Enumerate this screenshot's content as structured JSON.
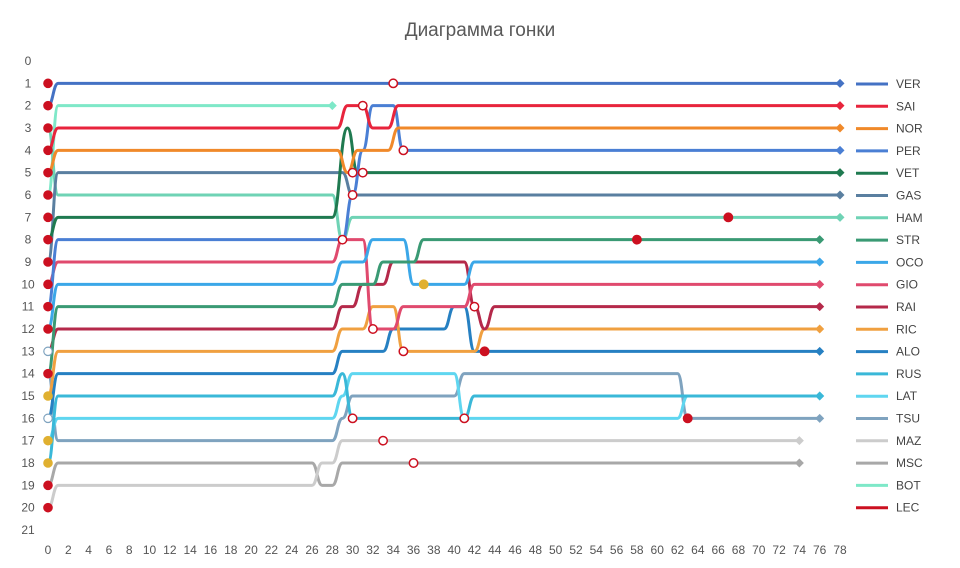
{
  "chart_data": {
    "type": "line",
    "title": "Диаграмма гонки",
    "xlabel": "",
    "ylabel": "",
    "xlim": [
      0,
      78
    ],
    "ylim": [
      0,
      21
    ],
    "x_ticks": [
      0,
      2,
      4,
      6,
      8,
      10,
      12,
      14,
      16,
      18,
      20,
      22,
      24,
      26,
      28,
      30,
      32,
      34,
      36,
      38,
      40,
      42,
      44,
      46,
      48,
      50,
      52,
      54,
      56,
      58,
      60,
      62,
      64,
      66,
      68,
      70,
      72,
      74,
      76,
      78
    ],
    "y_ticks": [
      0,
      1,
      2,
      3,
      4,
      5,
      6,
      7,
      8,
      9,
      10,
      11,
      12,
      13,
      14,
      15,
      16,
      17,
      18,
      19,
      20,
      21
    ],
    "y_inverted": true,
    "grid": false,
    "legend_position": "right",
    "series": [
      {
        "name": "VER",
        "color": "#4472c4",
        "points": [
          [
            0,
            2
          ],
          [
            1,
            1
          ],
          [
            78,
            1
          ]
        ],
        "end_marker": "diamond",
        "markers": [
          {
            "x": 34,
            "y": 1,
            "type": "hollow"
          }
        ]
      },
      {
        "name": "SAI",
        "color": "#e8243c",
        "points": [
          [
            0,
            4
          ],
          [
            1,
            3
          ],
          [
            28.5,
            3
          ],
          [
            29.5,
            2
          ],
          [
            31,
            2
          ],
          [
            32,
            3
          ],
          [
            33.5,
            3
          ],
          [
            34.5,
            2
          ],
          [
            78,
            2
          ]
        ],
        "end_marker": "diamond",
        "markers": [
          {
            "x": 31,
            "y": 2,
            "type": "hollow"
          }
        ]
      },
      {
        "name": "NOR",
        "color": "#f0892a",
        "points": [
          [
            0,
            5
          ],
          [
            1,
            4
          ],
          [
            28.5,
            4
          ],
          [
            29.5,
            5
          ],
          [
            30.5,
            4
          ],
          [
            33.5,
            4
          ],
          [
            34.5,
            3
          ],
          [
            78,
            3
          ]
        ],
        "end_marker": "diamond",
        "markers": [
          {
            "x": 30,
            "y": 5,
            "type": "hollow"
          }
        ]
      },
      {
        "name": "PER",
        "color": "#4a7fd4",
        "points": [
          [
            0,
            11
          ],
          [
            1,
            8
          ],
          [
            28,
            8
          ],
          [
            29,
            8
          ],
          [
            30,
            6
          ],
          [
            31,
            4
          ],
          [
            32,
            2
          ],
          [
            34,
            2
          ],
          [
            35,
            4
          ],
          [
            78,
            4
          ]
        ],
        "end_marker": "diamond",
        "markers": [
          {
            "x": 35,
            "y": 4,
            "type": "hollow"
          }
        ]
      },
      {
        "name": "VET",
        "color": "#1f7a50",
        "points": [
          [
            0,
            8
          ],
          [
            1,
            7
          ],
          [
            28,
            7
          ],
          [
            29.5,
            3
          ],
          [
            30.5,
            5
          ],
          [
            78,
            5
          ]
        ],
        "end_marker": "diamond",
        "markers": [
          {
            "x": 31,
            "y": 5,
            "type": "hollow"
          }
        ]
      },
      {
        "name": "GAS",
        "color": "#5a7fa0",
        "points": [
          [
            0,
            9
          ],
          [
            1,
            5
          ],
          [
            29,
            5
          ],
          [
            30,
            6
          ],
          [
            78,
            6
          ]
        ],
        "end_marker": "diamond",
        "markers": [
          {
            "x": 30,
            "y": 6,
            "type": "hollow"
          }
        ]
      },
      {
        "name": "HAM",
        "color": "#6fd3b5",
        "points": [
          [
            0,
            3
          ],
          [
            1,
            6
          ],
          [
            28,
            6
          ],
          [
            29,
            8
          ],
          [
            30,
            7
          ],
          [
            78,
            7
          ]
        ],
        "end_marker": "diamond",
        "markers": [
          {
            "x": 29,
            "y": 8,
            "type": "hollow"
          },
          {
            "x": 67,
            "y": 7,
            "type": "red"
          }
        ]
      },
      {
        "name": "STR",
        "color": "#3a9a74",
        "points": [
          [
            0,
            14
          ],
          [
            1,
            11
          ],
          [
            28,
            11
          ],
          [
            29,
            10
          ],
          [
            32,
            10
          ],
          [
            33,
            9
          ],
          [
            36,
            9
          ],
          [
            37,
            8
          ],
          [
            76,
            8
          ]
        ],
        "end_marker": "diamond",
        "markers": [
          {
            "x": 58,
            "y": 8,
            "type": "red"
          }
        ]
      },
      {
        "name": "OCO",
        "color": "#3ba7e8",
        "points": [
          [
            0,
            12
          ],
          [
            1,
            10
          ],
          [
            28,
            10
          ],
          [
            29,
            9
          ],
          [
            31,
            9
          ],
          [
            32,
            8
          ],
          [
            35,
            8
          ],
          [
            36,
            10
          ],
          [
            41,
            10
          ],
          [
            42,
            9
          ],
          [
            76,
            9
          ]
        ],
        "end_marker": "diamond",
        "markers": [
          {
            "x": 37,
            "y": 10,
            "type": "yellow"
          }
        ]
      },
      {
        "name": "GIO",
        "color": "#e04a6e",
        "points": [
          [
            0,
            10
          ],
          [
            1,
            9
          ],
          [
            28,
            9
          ],
          [
            29,
            8
          ],
          [
            31,
            8
          ],
          [
            32,
            12
          ],
          [
            34,
            12
          ],
          [
            35,
            11
          ],
          [
            41,
            11
          ],
          [
            42,
            10
          ],
          [
            76,
            10
          ]
        ],
        "end_marker": "diamond",
        "markers": [
          {
            "x": 32,
            "y": 12,
            "type": "hollow"
          }
        ]
      },
      {
        "name": "RAI",
        "color": "#b5294a",
        "points": [
          [
            0,
            13
          ],
          [
            1,
            12
          ],
          [
            28,
            12
          ],
          [
            29,
            11
          ],
          [
            30,
            11
          ],
          [
            31,
            10
          ],
          [
            33,
            10
          ],
          [
            34,
            9
          ],
          [
            36,
            9
          ],
          [
            37,
            9
          ],
          [
            41,
            9
          ],
          [
            42,
            11
          ],
          [
            43,
            12
          ],
          [
            44,
            11
          ],
          [
            76,
            11
          ]
        ],
        "end_marker": "diamond",
        "markers": [
          {
            "x": 42,
            "y": 11,
            "type": "hollow"
          }
        ]
      },
      {
        "name": "RIC",
        "color": "#f0a040",
        "points": [
          [
            0,
            15
          ],
          [
            1,
            13
          ],
          [
            28,
            13
          ],
          [
            29,
            12
          ],
          [
            31,
            12
          ],
          [
            32,
            11
          ],
          [
            34,
            11
          ],
          [
            35,
            13
          ],
          [
            41,
            13
          ],
          [
            42,
            13
          ],
          [
            43,
            12
          ],
          [
            76,
            12
          ]
        ],
        "end_marker": "diamond",
        "markers": [
          {
            "x": 35,
            "y": 13,
            "type": "hollow"
          }
        ]
      },
      {
        "name": "ALO",
        "color": "#2680c2",
        "points": [
          [
            0,
            16
          ],
          [
            1,
            14
          ],
          [
            28,
            14
          ],
          [
            29,
            13
          ],
          [
            33,
            13
          ],
          [
            34,
            12
          ],
          [
            39,
            12
          ],
          [
            40,
            11
          ],
          [
            41,
            11
          ],
          [
            42,
            13
          ],
          [
            76,
            13
          ]
        ],
        "end_marker": "diamond",
        "markers": [
          {
            "x": 43,
            "y": 13,
            "type": "red"
          }
        ]
      },
      {
        "name": "RUS",
        "color": "#3ab8d8",
        "points": [
          [
            0,
            18
          ],
          [
            1,
            15
          ],
          [
            28,
            15
          ],
          [
            29,
            14
          ],
          [
            30,
            16
          ],
          [
            41,
            16
          ],
          [
            42,
            15
          ],
          [
            76,
            15
          ]
        ],
        "end_marker": "diamond",
        "markers": [
          {
            "x": 30,
            "y": 16,
            "type": "hollow"
          }
        ]
      },
      {
        "name": "LAT",
        "color": "#5fd6f0",
        "points": [
          [
            0,
            17
          ],
          [
            1,
            16
          ],
          [
            28,
            16
          ],
          [
            29,
            15
          ],
          [
            30,
            14
          ],
          [
            40,
            14
          ],
          [
            41,
            16
          ],
          [
            62,
            16
          ],
          [
            63,
            15
          ],
          [
            76,
            15
          ]
        ],
        "end_marker": "diamond",
        "markers": [
          {
            "x": 41,
            "y": 16,
            "type": "hollow"
          }
        ]
      },
      {
        "name": "TSU",
        "color": "#7fa3bf",
        "points": [
          [
            0,
            14
          ],
          [
            1,
            17
          ],
          [
            28,
            17
          ],
          [
            29,
            16
          ],
          [
            30,
            15
          ],
          [
            40,
            15
          ],
          [
            41,
            14
          ],
          [
            62,
            14
          ],
          [
            63,
            16
          ],
          [
            76,
            16
          ]
        ],
        "end_marker": "diamond",
        "markers": [
          {
            "x": 63,
            "y": 16,
            "type": "red"
          }
        ]
      },
      {
        "name": "MAZ",
        "color": "#cccccc",
        "points": [
          [
            0,
            20
          ],
          [
            1,
            19
          ],
          [
            26,
            19
          ],
          [
            27,
            18
          ],
          [
            28,
            18
          ],
          [
            29,
            17
          ],
          [
            74,
            17
          ]
        ],
        "end_marker": "diamond",
        "markers": [
          {
            "x": 33,
            "y": 17,
            "type": "hollow"
          }
        ]
      },
      {
        "name": "MSC",
        "color": "#a8a8a8",
        "points": [
          [
            0,
            19
          ],
          [
            1,
            18
          ],
          [
            26,
            18
          ],
          [
            27,
            19
          ],
          [
            28,
            19
          ],
          [
            29,
            18
          ],
          [
            74,
            18
          ]
        ],
        "end_marker": "diamond",
        "markers": [
          {
            "x": 36,
            "y": 18,
            "type": "hollow"
          }
        ]
      },
      {
        "name": "BOT",
        "color": "#7ee8c8",
        "points": [
          [
            0,
            6
          ],
          [
            1,
            2
          ],
          [
            28,
            2
          ]
        ],
        "end_marker": "diamond",
        "markers": []
      },
      {
        "name": "LEC",
        "color": "#cc1020",
        "points": [
          [
            0,
            1
          ]
        ],
        "end_marker": "diamond",
        "markers": []
      }
    ],
    "start_markers": [
      {
        "y": 1,
        "color": "#cc1020"
      },
      {
        "y": 2,
        "color": "#cc1020"
      },
      {
        "y": 3,
        "color": "#cc1020"
      },
      {
        "y": 4,
        "color": "#cc1020"
      },
      {
        "y": 5,
        "color": "#cc1020"
      },
      {
        "y": 6,
        "color": "#cc1020"
      },
      {
        "y": 7,
        "color": "#cc1020"
      },
      {
        "y": 8,
        "color": "#cc1020"
      },
      {
        "y": 9,
        "color": "#cc1020"
      },
      {
        "y": 10,
        "color": "#cc1020"
      },
      {
        "y": 11,
        "color": "#cc1020"
      },
      {
        "y": 12,
        "color": "#cc1020"
      },
      {
        "y": 13,
        "color": "#ffffff"
      },
      {
        "y": 14,
        "color": "#cc1020"
      },
      {
        "y": 15,
        "color": "#e0b030"
      },
      {
        "y": 16,
        "color": "#ffffff"
      },
      {
        "y": 17,
        "color": "#e0b030"
      },
      {
        "y": 18,
        "color": "#e0b030"
      },
      {
        "y": 19,
        "color": "#cc1020"
      },
      {
        "y": 20,
        "color": "#cc1020"
      }
    ]
  }
}
